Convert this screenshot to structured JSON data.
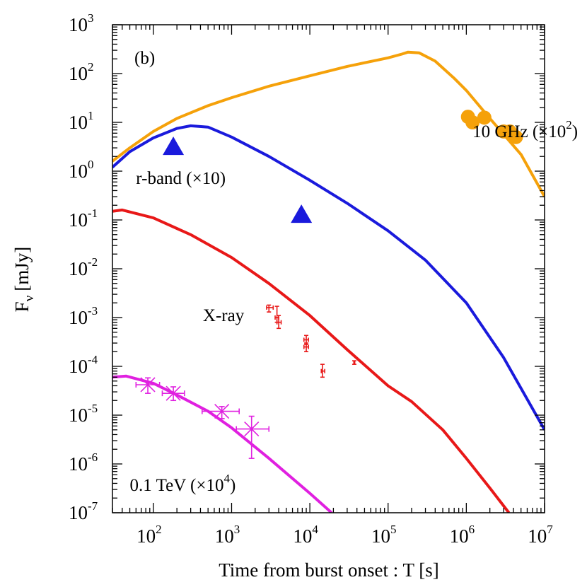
{
  "chart_data": {
    "type": "line",
    "panel_label": "(b)",
    "xlabel": "Time from burst onset : T [s]",
    "ylabel_main": "F",
    "ylabel_sub": "ν",
    "ylabel_unit": "[mJy]",
    "xscale": "log",
    "yscale": "log",
    "xlim": [
      30,
      10000000
    ],
    "ylim": [
      1e-07,
      1000
    ],
    "x_ticks": [
      {
        "base": "10",
        "exp": "2",
        "value": 100
      },
      {
        "base": "10",
        "exp": "3",
        "value": 1000
      },
      {
        "base": "10",
        "exp": "4",
        "value": 10000
      },
      {
        "base": "10",
        "exp": "5",
        "value": 100000
      },
      {
        "base": "10",
        "exp": "6",
        "value": 1000000
      },
      {
        "base": "10",
        "exp": "7",
        "value": 10000000
      }
    ],
    "y_ticks": [
      {
        "base": "10",
        "exp": "3",
        "value": 1000
      },
      {
        "base": "10",
        "exp": "2",
        "value": 100
      },
      {
        "base": "10",
        "exp": "1",
        "value": 10
      },
      {
        "base": "10",
        "exp": "0",
        "value": 1
      },
      {
        "base": "10",
        "exp": "-1",
        "value": 0.1
      },
      {
        "base": "10",
        "exp": "-2",
        "value": 0.01
      },
      {
        "base": "10",
        "exp": "-3",
        "value": 0.001
      },
      {
        "base": "10",
        "exp": "-4",
        "value": 0.0001
      },
      {
        "base": "10",
        "exp": "-5",
        "value": 1e-05
      },
      {
        "base": "10",
        "exp": "-6",
        "value": 1e-06
      },
      {
        "base": "10",
        "exp": "-7",
        "value": 1e-07
      }
    ],
    "annotations": [
      {
        "id": "ghz",
        "text": "10 GHz (×10",
        "sup": "2",
        "tail": ")",
        "x": 1200000,
        "y": 5.0
      },
      {
        "id": "rband",
        "text": "r-band (×10)",
        "sup": "",
        "tail": "",
        "x": 60,
        "y": 0.55
      },
      {
        "id": "xray",
        "text": "X-ray",
        "sup": "",
        "tail": "",
        "x": 430,
        "y": 0.00085
      },
      {
        "id": "tev",
        "text": "0.1 TeV (×10",
        "sup": "4",
        "tail": ")",
        "x": 50,
        "y": 2.8e-07
      }
    ],
    "series": [
      {
        "key": "ghz",
        "color": "#f5a10a",
        "points": [
          [
            30,
            1.6
          ],
          [
            50,
            3
          ],
          [
            100,
            6.5
          ],
          [
            200,
            12
          ],
          [
            500,
            22
          ],
          [
            1000,
            32
          ],
          [
            3000,
            55
          ],
          [
            10000,
            90
          ],
          [
            30000,
            140
          ],
          [
            100000,
            210
          ],
          [
            150000,
            250
          ],
          [
            180000,
            275
          ],
          [
            250000,
            265
          ],
          [
            400000,
            180
          ],
          [
            700000,
            80
          ],
          [
            1000000,
            45
          ],
          [
            2000000,
            12
          ],
          [
            5000000,
            2.2
          ],
          [
            10000000,
            0.3
          ]
        ]
      },
      {
        "key": "rband",
        "color": "#1a1adc",
        "points": [
          [
            30,
            1.2
          ],
          [
            50,
            2.5
          ],
          [
            100,
            4.8
          ],
          [
            200,
            7.5
          ],
          [
            300,
            8.5
          ],
          [
            500,
            8
          ],
          [
            1000,
            5
          ],
          [
            3000,
            2
          ],
          [
            10000,
            0.65
          ],
          [
            30000,
            0.22
          ],
          [
            100000,
            0.06
          ],
          [
            300000,
            0.015
          ],
          [
            1000000,
            0.002
          ],
          [
            3000000,
            0.00015
          ],
          [
            10000000,
            5e-06
          ]
        ]
      },
      {
        "key": "xray",
        "color": "#e81818",
        "points": [
          [
            30,
            0.15
          ],
          [
            40,
            0.16
          ],
          [
            100,
            0.11
          ],
          [
            300,
            0.05
          ],
          [
            1000,
            0.017
          ],
          [
            3000,
            0.005
          ],
          [
            10000,
            0.0011
          ],
          [
            30000,
            0.00022
          ],
          [
            100000,
            4e-05
          ],
          [
            200000,
            1.9e-05
          ],
          [
            500000,
            5e-06
          ],
          [
            1000000,
            1.3e-06
          ],
          [
            2000000,
            3.2e-07
          ],
          [
            3500000,
            1e-07
          ]
        ]
      },
      {
        "key": "tev",
        "color": "#e020e0",
        "points": [
          [
            30,
            6e-05
          ],
          [
            45,
            6.3e-05
          ],
          [
            100,
            4.5e-05
          ],
          [
            200,
            2.6e-05
          ],
          [
            500,
            1.2e-05
          ],
          [
            1000,
            5.5e-06
          ],
          [
            3000,
            1.3e-06
          ],
          [
            10000,
            2.5e-07
          ],
          [
            19000,
            1e-07
          ]
        ]
      }
    ],
    "rband_points": [
      {
        "x": 180,
        "y": 3.2
      },
      {
        "x": 7800,
        "y": 0.13
      }
    ],
    "ghz_points": [
      {
        "x": 1050000,
        "y": 13
      },
      {
        "x": 1200000,
        "y": 10
      },
      {
        "x": 1700000,
        "y": 12.5
      },
      {
        "x": 3000000,
        "y": 6.5
      },
      {
        "x": 3600000,
        "y": 6.5
      },
      {
        "x": 4300000,
        "y": 5
      }
    ],
    "xray_points": [
      {
        "x": 3000,
        "y": 0.0016,
        "xlo": 2800,
        "xhi": 3400,
        "ylo": 0.0013,
        "yhi": 0.0018
      },
      {
        "x": 3800,
        "y": 0.001,
        "xlo": 3600,
        "xhi": 4000,
        "ylo": 0.0008,
        "yhi": 0.0017
      },
      {
        "x": 4000,
        "y": 0.0008,
        "xlo": 3800,
        "xhi": 4300,
        "ylo": 0.0006,
        "yhi": 0.0011
      },
      {
        "x": 9000,
        "y": 0.00035,
        "xlo": 8400,
        "xhi": 9600,
        "ylo": 0.00028,
        "yhi": 0.00043
      },
      {
        "x": 9000,
        "y": 0.00025,
        "xlo": 8400,
        "xhi": 9600,
        "ylo": 0.0002,
        "yhi": 0.0003
      },
      {
        "x": 14500,
        "y": 8e-05,
        "xlo": 14000,
        "xhi": 15500,
        "ylo": 6e-05,
        "yhi": 0.00011
      },
      {
        "x": 37000,
        "y": 0.00012,
        "xlo": 36500,
        "xhi": 37500,
        "ylo": 0.00011,
        "yhi": 0.00013
      }
    ],
    "tev_points": [
      {
        "x": 85,
        "y": 4.2e-05,
        "xlo": 60,
        "xhi": 120,
        "ylo": 2.8e-05,
        "yhi": 5.8e-05
      },
      {
        "x": 180,
        "y": 2.8e-05,
        "xlo": 130,
        "xhi": 250,
        "ylo": 2e-05,
        "yhi": 3.8e-05
      },
      {
        "x": 750,
        "y": 1.2e-05,
        "xlo": 420,
        "xhi": 1250,
        "ylo": 8.5e-06,
        "yhi": 1.5e-05
      },
      {
        "x": 1800,
        "y": 5.2e-06,
        "xlo": 1150,
        "xhi": 3000,
        "ylo": 1.3e-06,
        "yhi": 9.5e-06
      }
    ],
    "colors": {
      "ghz": "#f5a10a",
      "rband": "#1a1adc",
      "xray": "#e81818",
      "tev": "#e020e0"
    },
    "grid": false,
    "legend": "none"
  }
}
